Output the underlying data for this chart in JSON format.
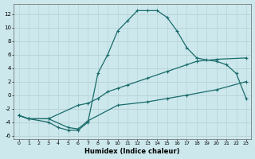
{
  "xlabel": "Humidex (Indice chaleur)",
  "bg_color": "#cce8ec",
  "grid_color": "#b0d8dc",
  "line_color": "#1a6b6b",
  "xlim": [
    -0.5,
    23.5
  ],
  "ylim": [
    -6.5,
    13.5
  ],
  "xticks": [
    0,
    1,
    2,
    3,
    4,
    5,
    6,
    7,
    8,
    9,
    10,
    11,
    12,
    13,
    14,
    15,
    16,
    17,
    18,
    19,
    20,
    21,
    22,
    23
  ],
  "yticks": [
    -6,
    -4,
    -2,
    0,
    2,
    4,
    6,
    8,
    10,
    12
  ],
  "line1_x": [
    0,
    1,
    3,
    4,
    5,
    6,
    7,
    8,
    9,
    10,
    11,
    12,
    13,
    14,
    15,
    16,
    17,
    18,
    19,
    20,
    21,
    22,
    23
  ],
  "line1_y": [
    -3,
    -3.5,
    -4,
    -4.8,
    -5.2,
    -5.2,
    -4,
    3.2,
    6.0,
    9.5,
    11.0,
    12.5,
    12.5,
    12.5,
    11.5,
    9.5,
    7.0,
    5.5,
    5.2,
    5.0,
    4.5,
    3.2,
    -0.5
  ],
  "line2_x": [
    0,
    1,
    3,
    6,
    7,
    8,
    9,
    10,
    11,
    13,
    15,
    17,
    18,
    20,
    23
  ],
  "line2_y": [
    -3,
    -3.5,
    -3.5,
    -1.5,
    -1.2,
    -0.5,
    0.5,
    1.0,
    1.5,
    2.5,
    3.5,
    4.5,
    5.0,
    5.3,
    5.5
  ],
  "line3_x": [
    0,
    1,
    3,
    5,
    6,
    7,
    10,
    13,
    15,
    17,
    20,
    23
  ],
  "line3_y": [
    -3,
    -3.5,
    -3.5,
    -4.8,
    -5.0,
    -3.8,
    -1.5,
    -1.0,
    -0.5,
    0.0,
    0.8,
    2.0
  ]
}
